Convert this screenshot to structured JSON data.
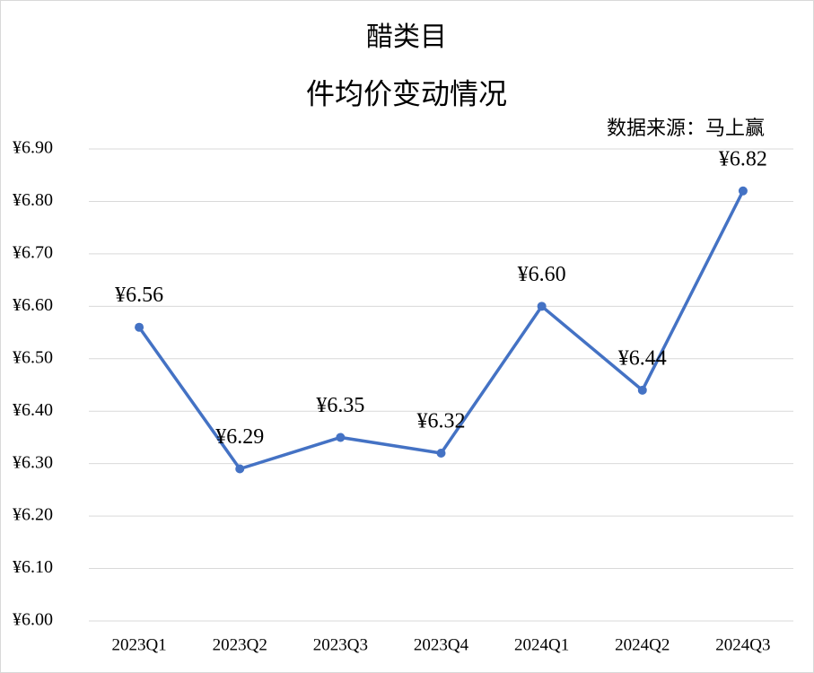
{
  "chart_data": {
    "type": "line",
    "title": [
      "醋类目",
      "件均价变动情况"
    ],
    "annotation": "数据来源：马上赢",
    "categories": [
      "2023Q1",
      "2023Q2",
      "2023Q3",
      "2023Q4",
      "2024Q1",
      "2024Q2",
      "2024Q3"
    ],
    "series": [
      {
        "color": "#4472c4",
        "values": [
          6.56,
          6.29,
          6.35,
          6.32,
          6.6,
          6.44,
          6.82
        ],
        "value_labels": [
          "¥6.56",
          "¥6.29",
          "¥6.35",
          "¥6.32",
          "¥6.60",
          "¥6.44",
          "¥6.82"
        ]
      }
    ],
    "ylim": [
      6.0,
      6.9
    ],
    "yticks": [
      {
        "value": 6.0,
        "label": "¥6.00"
      },
      {
        "value": 6.1,
        "label": "¥6.10"
      },
      {
        "value": 6.2,
        "label": "¥6.20"
      },
      {
        "value": 6.3,
        "label": "¥6.30"
      },
      {
        "value": 6.4,
        "label": "¥6.40"
      },
      {
        "value": 6.5,
        "label": "¥6.50"
      },
      {
        "value": 6.6,
        "label": "¥6.60"
      },
      {
        "value": 6.7,
        "label": "¥6.70"
      },
      {
        "value": 6.8,
        "label": "¥6.80"
      },
      {
        "value": 6.9,
        "label": "¥6.90"
      }
    ],
    "grid": true
  }
}
